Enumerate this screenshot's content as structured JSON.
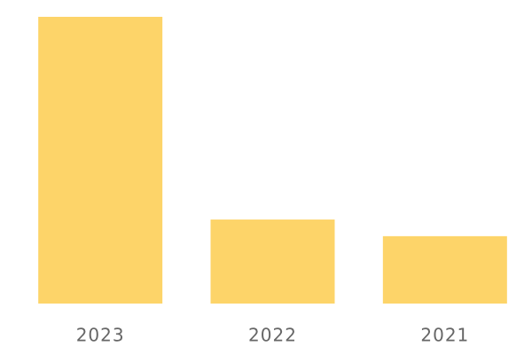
{
  "chart_data": {
    "type": "bar",
    "categories": [
      "2023",
      "2022",
      "2021"
    ],
    "values": [
      100,
      29.3,
      23.5
    ],
    "color": "#fdd469",
    "ylim": [
      0,
      100
    ]
  }
}
